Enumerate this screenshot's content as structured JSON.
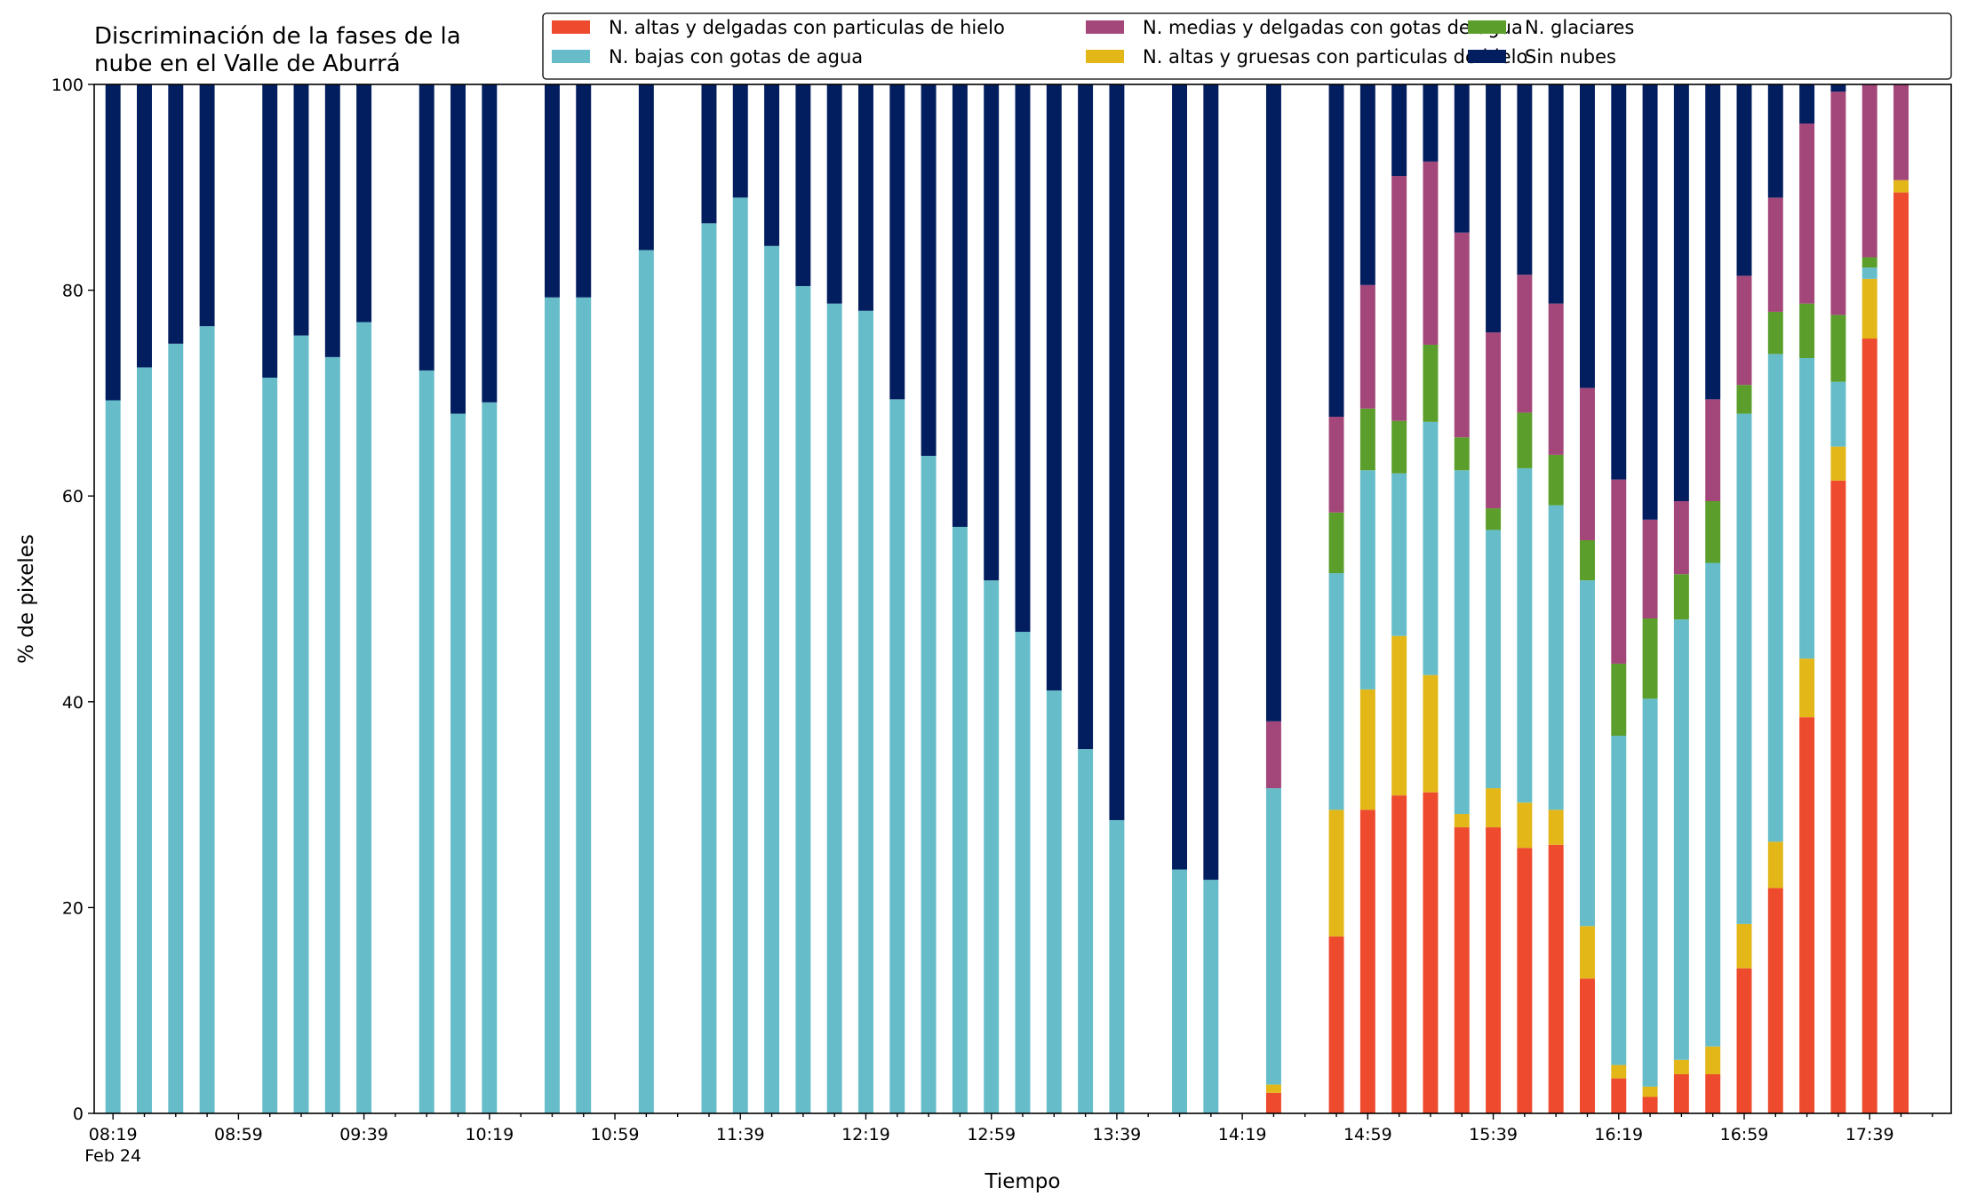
{
  "chart_data": {
    "type": "bar",
    "stacked": true,
    "title": "Discriminación de la fases de la\nnube en el Valle de Aburrá",
    "xlabel": "Tiempo",
    "ylabel": "% de pixeles",
    "ylim": [
      0,
      100
    ],
    "yticks": [
      0,
      20,
      40,
      60,
      80,
      100
    ],
    "x_start_minutes": 499,
    "x_step_minutes": 10,
    "xlim_slots": [
      -0.6,
      58.6
    ],
    "x_tick_labels": [
      "08:19",
      "08:59",
      "09:39",
      "10:19",
      "10:59",
      "11:39",
      "12:19",
      "12:59",
      "13:39",
      "14:19",
      "14:59",
      "15:39",
      "16:19",
      "16:59",
      "17:39"
    ],
    "x_tick_sublabel": "Feb 24",
    "legend_position": "top-right",
    "series": [
      {
        "name": "N. altas y delgadas con particulas de hielo",
        "color": "#ED4A2E"
      },
      {
        "name": "N. altas y gruesas con particulas de hielo",
        "color": "#E3B718"
      },
      {
        "name": "N. bajas con gotas de agua",
        "color": "#66BDC9"
      },
      {
        "name": "N. glaciares",
        "color": "#5B9E2B"
      },
      {
        "name": "N. medias y delgadas con gotas de agua",
        "color": "#A3477A"
      },
      {
        "name": "Sin nubes",
        "color": "#031E5F"
      }
    ],
    "legend_order": [
      0,
      2,
      4,
      1,
      3,
      5
    ],
    "bars": [
      {
        "slot": 0,
        "values": [
          0,
          0,
          69.3,
          0,
          0,
          30.7
        ]
      },
      {
        "slot": 1,
        "values": [
          0,
          0,
          72.5,
          0,
          0,
          27.5
        ]
      },
      {
        "slot": 2,
        "values": [
          0,
          0,
          74.8,
          0,
          0,
          25.2
        ]
      },
      {
        "slot": 3,
        "values": [
          0,
          0,
          76.5,
          0,
          0,
          23.5
        ]
      },
      {
        "slot": 5,
        "values": [
          0,
          0,
          71.5,
          0,
          0,
          28.5
        ]
      },
      {
        "slot": 6,
        "values": [
          0,
          0,
          75.6,
          0,
          0,
          24.4
        ]
      },
      {
        "slot": 7,
        "values": [
          0,
          0,
          73.5,
          0,
          0,
          26.5
        ]
      },
      {
        "slot": 8,
        "values": [
          0,
          0,
          76.9,
          0,
          0,
          23.1
        ]
      },
      {
        "slot": 10,
        "values": [
          0,
          0,
          72.2,
          0,
          0,
          27.8
        ]
      },
      {
        "slot": 11,
        "values": [
          0,
          0,
          68.0,
          0,
          0,
          32.0
        ]
      },
      {
        "slot": 12,
        "values": [
          0,
          0,
          69.1,
          0,
          0,
          30.9
        ]
      },
      {
        "slot": 14,
        "values": [
          0,
          0,
          79.3,
          0,
          0,
          20.7
        ]
      },
      {
        "slot": 15,
        "values": [
          0,
          0,
          79.3,
          0,
          0,
          20.7
        ]
      },
      {
        "slot": 17,
        "values": [
          0,
          0,
          83.9,
          0,
          0,
          16.1
        ]
      },
      {
        "slot": 19,
        "values": [
          0,
          0,
          86.5,
          0,
          0,
          13.5
        ]
      },
      {
        "slot": 20,
        "values": [
          0,
          0,
          89.0,
          0,
          0,
          11.0
        ]
      },
      {
        "slot": 21,
        "values": [
          0,
          0,
          84.3,
          0,
          0,
          15.7
        ]
      },
      {
        "slot": 22,
        "values": [
          0,
          0,
          80.4,
          0,
          0,
          19.6
        ]
      },
      {
        "slot": 23,
        "values": [
          0,
          0,
          78.7,
          0,
          0,
          21.3
        ]
      },
      {
        "slot": 24,
        "values": [
          0,
          0,
          78.0,
          0,
          0,
          22.0
        ]
      },
      {
        "slot": 25,
        "values": [
          0,
          0,
          69.4,
          0,
          0,
          30.6
        ]
      },
      {
        "slot": 26,
        "values": [
          0,
          0,
          63.9,
          0,
          0,
          36.1
        ]
      },
      {
        "slot": 27,
        "values": [
          0,
          0,
          57.0,
          0,
          0,
          43.0
        ]
      },
      {
        "slot": 28,
        "values": [
          0,
          0,
          51.8,
          0,
          0,
          48.2
        ]
      },
      {
        "slot": 29,
        "values": [
          0,
          0,
          46.8,
          0,
          0,
          53.2
        ]
      },
      {
        "slot": 30,
        "values": [
          0,
          0,
          41.1,
          0,
          0,
          58.9
        ]
      },
      {
        "slot": 31,
        "values": [
          0,
          0,
          35.4,
          0,
          0,
          64.6
        ]
      },
      {
        "slot": 32,
        "values": [
          0,
          0,
          28.5,
          0,
          0,
          71.5
        ]
      },
      {
        "slot": 34,
        "values": [
          0,
          0,
          23.7,
          0,
          0,
          76.3
        ]
      },
      {
        "slot": 35,
        "values": [
          0,
          0,
          22.7,
          0,
          0,
          77.3
        ]
      },
      {
        "slot": 37,
        "values": [
          2.0,
          0.8,
          28.8,
          0,
          6.5,
          61.9
        ]
      },
      {
        "slot": 39,
        "values": [
          17.2,
          12.3,
          23.0,
          5.9,
          9.3,
          32.3
        ]
      },
      {
        "slot": 40,
        "values": [
          29.5,
          11.7,
          21.3,
          6.0,
          12.0,
          19.5
        ]
      },
      {
        "slot": 41,
        "values": [
          30.9,
          15.5,
          15.8,
          5.1,
          23.8,
          8.9
        ]
      },
      {
        "slot": 42,
        "values": [
          31.2,
          11.4,
          24.6,
          7.5,
          17.8,
          7.5
        ]
      },
      {
        "slot": 43,
        "values": [
          27.8,
          1.3,
          33.4,
          3.2,
          19.9,
          14.4
        ]
      },
      {
        "slot": 44,
        "values": [
          27.8,
          3.8,
          25.1,
          2.1,
          17.1,
          24.1
        ]
      },
      {
        "slot": 45,
        "values": [
          25.8,
          4.4,
          32.5,
          5.4,
          13.4,
          18.5
        ]
      },
      {
        "slot": 46,
        "values": [
          26.1,
          3.4,
          29.6,
          4.9,
          14.7,
          21.3
        ]
      },
      {
        "slot": 47,
        "values": [
          13.1,
          5.1,
          33.6,
          3.9,
          14.8,
          29.5
        ]
      },
      {
        "slot": 48,
        "values": [
          3.4,
          1.3,
          32.0,
          7.0,
          17.9,
          38.4
        ]
      },
      {
        "slot": 49,
        "values": [
          1.6,
          1.0,
          37.7,
          7.8,
          9.6,
          42.3
        ]
      },
      {
        "slot": 50,
        "values": [
          3.8,
          1.4,
          42.8,
          4.4,
          7.1,
          40.5
        ]
      },
      {
        "slot": 51,
        "values": [
          3.8,
          2.7,
          47.0,
          6.0,
          9.9,
          30.6
        ]
      },
      {
        "slot": 52,
        "values": [
          14.1,
          4.3,
          49.6,
          2.8,
          10.6,
          18.6
        ]
      },
      {
        "slot": 53,
        "values": [
          21.9,
          4.5,
          47.4,
          4.1,
          11.1,
          11.0
        ]
      },
      {
        "slot": 54,
        "values": [
          38.5,
          5.7,
          29.2,
          5.3,
          17.5,
          3.8
        ]
      },
      {
        "slot": 55,
        "values": [
          61.5,
          3.3,
          6.3,
          6.5,
          21.7,
          0.7
        ]
      },
      {
        "slot": 56,
        "values": [
          75.3,
          5.8,
          1.1,
          1.0,
          16.8,
          0
        ]
      },
      {
        "slot": 57,
        "values": [
          89.5,
          1.2,
          0,
          0,
          9.3,
          0
        ]
      }
    ]
  }
}
